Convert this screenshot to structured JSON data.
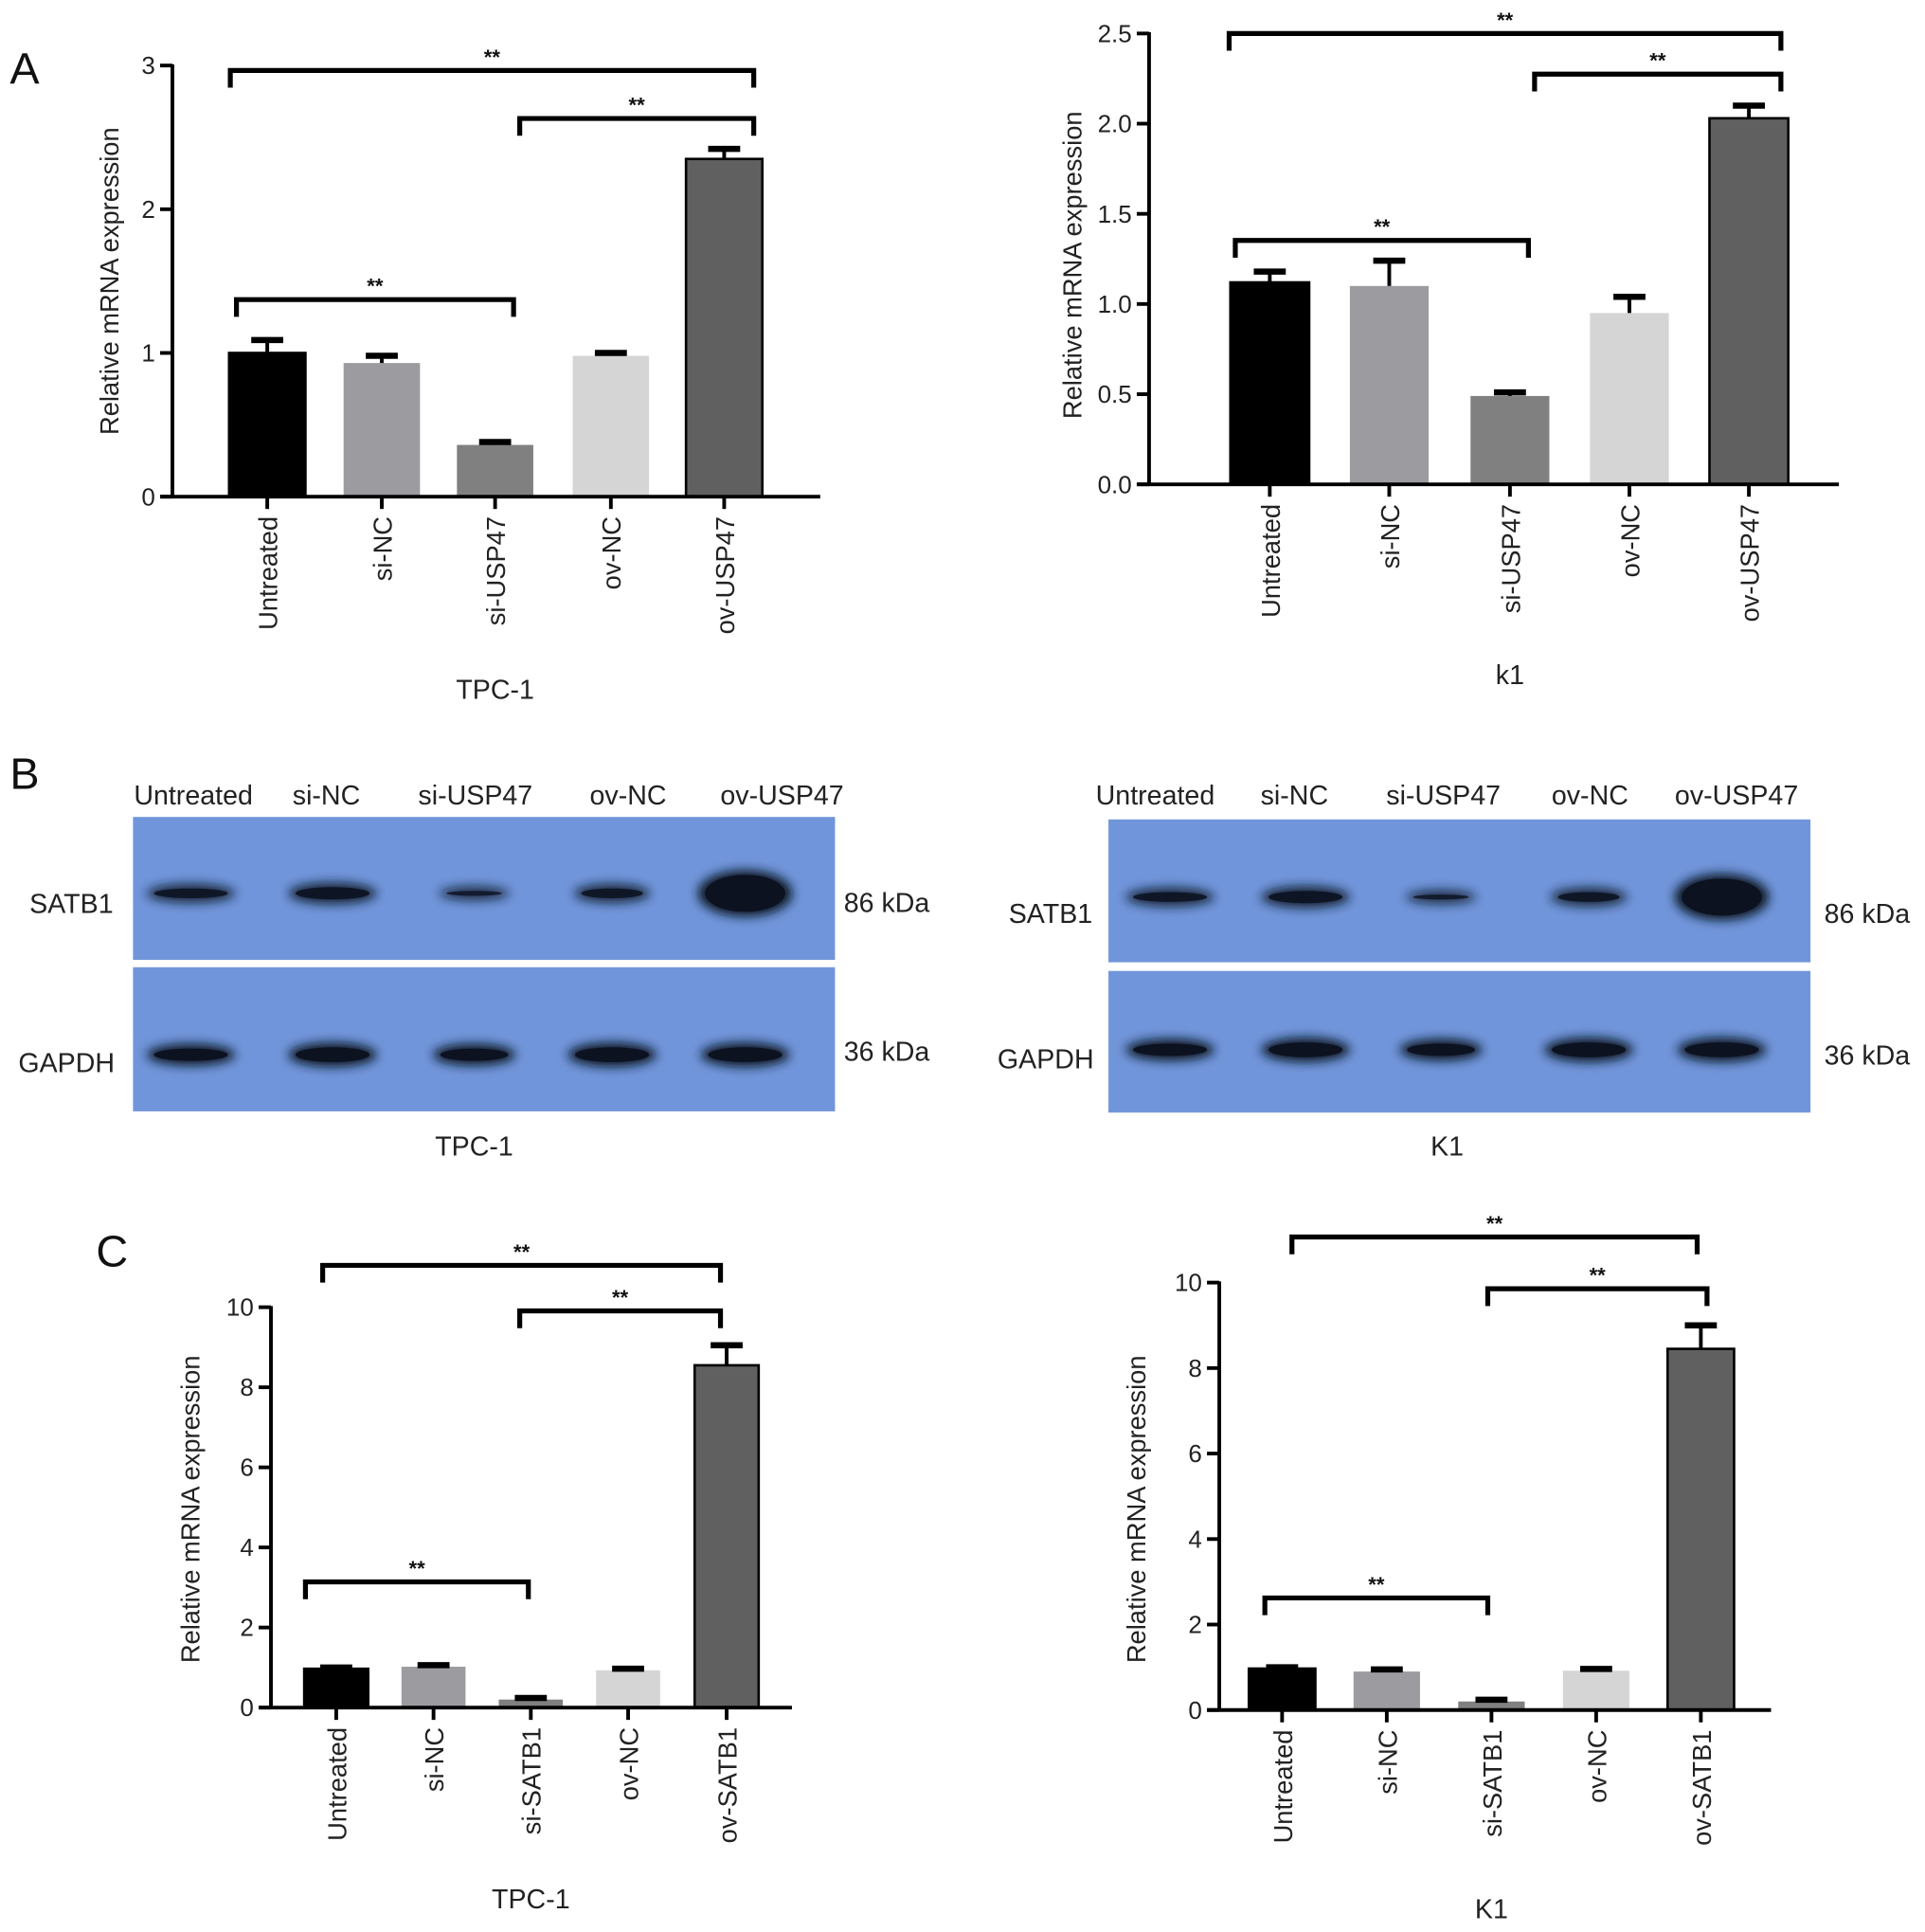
{
  "panel_letters": [
    "A",
    "B",
    "C"
  ],
  "bar_colors": [
    "#000000",
    "#9b9ba0",
    "#808080",
    "#d5d5d5",
    "#606060"
  ],
  "blot_color": "#7195da",
  "chart_data": [
    {
      "type": "bar",
      "panel": "A",
      "categories": [
        "Untreated",
        "si-NC",
        "si-USP47",
        "ov-NC",
        "ov-USP47"
      ],
      "values": [
        1.0,
        0.93,
        0.36,
        0.98,
        2.35
      ],
      "errors": [
        0.09,
        0.05,
        0.02,
        0.02,
        0.07
      ],
      "xlabel": "TPC-1",
      "ylabel": "Relative mRNA expression",
      "ylim": [
        0,
        3
      ],
      "yticks": [
        "0",
        "1",
        "2",
        "3"
      ],
      "significance": [
        {
          "from": 0,
          "to": 4,
          "label": "**"
        },
        {
          "from": 2,
          "to": 4,
          "label": "**"
        },
        {
          "from": 0,
          "to": 2,
          "label": "**"
        }
      ]
    },
    {
      "type": "bar",
      "panel": "A",
      "categories": [
        "Untreated",
        "si-NC",
        "si-USP47",
        "ov-NC",
        "ov-USP47"
      ],
      "values": [
        1.12,
        1.1,
        0.49,
        0.95,
        2.03
      ],
      "errors": [
        0.06,
        0.14,
        0.02,
        0.09,
        0.07
      ],
      "xlabel": "k1",
      "ylabel": "Relative mRNA expression",
      "ylim": [
        0,
        2.5
      ],
      "yticks": [
        "0.0",
        "0.5",
        "1.0",
        "1.5",
        "2.0",
        "2.5"
      ],
      "significance": [
        {
          "from": 0,
          "to": 4,
          "label": "**"
        },
        {
          "from": 2,
          "to": 4,
          "label": "**"
        },
        {
          "from": 0,
          "to": 2,
          "label": "**"
        }
      ]
    },
    {
      "type": "bar",
      "panel": "C",
      "categories": [
        "Untreated",
        "si-NC",
        "si-SATB1",
        "ov-NC",
        "ov-SATB1"
      ],
      "values": [
        0.97,
        1.02,
        0.2,
        0.93,
        8.55
      ],
      "errors": [
        0.03,
        0.04,
        0.04,
        0.04,
        0.5
      ],
      "xlabel": "TPC-1",
      "ylabel": "Relative mRNA expression",
      "ylim": [
        0,
        10
      ],
      "yticks": [
        "0",
        "2",
        "4",
        "6",
        "8",
        "10"
      ],
      "significance": [
        {
          "from": 0,
          "to": 4,
          "label": "**"
        },
        {
          "from": 2,
          "to": 4,
          "label": "**"
        },
        {
          "from": 0,
          "to": 2,
          "label": "**"
        }
      ]
    },
    {
      "type": "bar",
      "panel": "C",
      "categories": [
        "Untreated",
        "si-NC",
        "si-SATB1",
        "ov-NC",
        "ov-SATB1"
      ],
      "values": [
        0.97,
        0.9,
        0.2,
        0.92,
        8.45
      ],
      "errors": [
        0.03,
        0.05,
        0.04,
        0.04,
        0.55
      ],
      "xlabel": "K1",
      "ylabel": "Relative mRNA expression",
      "ylim": [
        0,
        10
      ],
      "yticks": [
        "0",
        "2",
        "4",
        "6",
        "8",
        "10"
      ],
      "significance": [
        {
          "from": 0,
          "to": 4,
          "label": "**"
        },
        {
          "from": 2,
          "to": 4,
          "label": "**"
        },
        {
          "from": 0,
          "to": 2,
          "label": "**"
        }
      ]
    }
  ],
  "blots": [
    {
      "cell_line": "TPC-1",
      "lanes": [
        "Untreated",
        "si-NC",
        "si-USP47",
        "ov-NC",
        "ov-USP47"
      ],
      "proteins": [
        {
          "name": "SATB1",
          "size": "86 kDa"
        },
        {
          "name": "GAPDH",
          "size": "36 kDa"
        }
      ]
    },
    {
      "cell_line": "K1",
      "lanes": [
        "Untreated",
        "si-NC",
        "si-USP47",
        "ov-NC",
        "ov-USP47"
      ],
      "proteins": [
        {
          "name": "SATB1",
          "size": "86 kDa"
        },
        {
          "name": "GAPDH",
          "size": "36 kDa"
        }
      ]
    }
  ]
}
